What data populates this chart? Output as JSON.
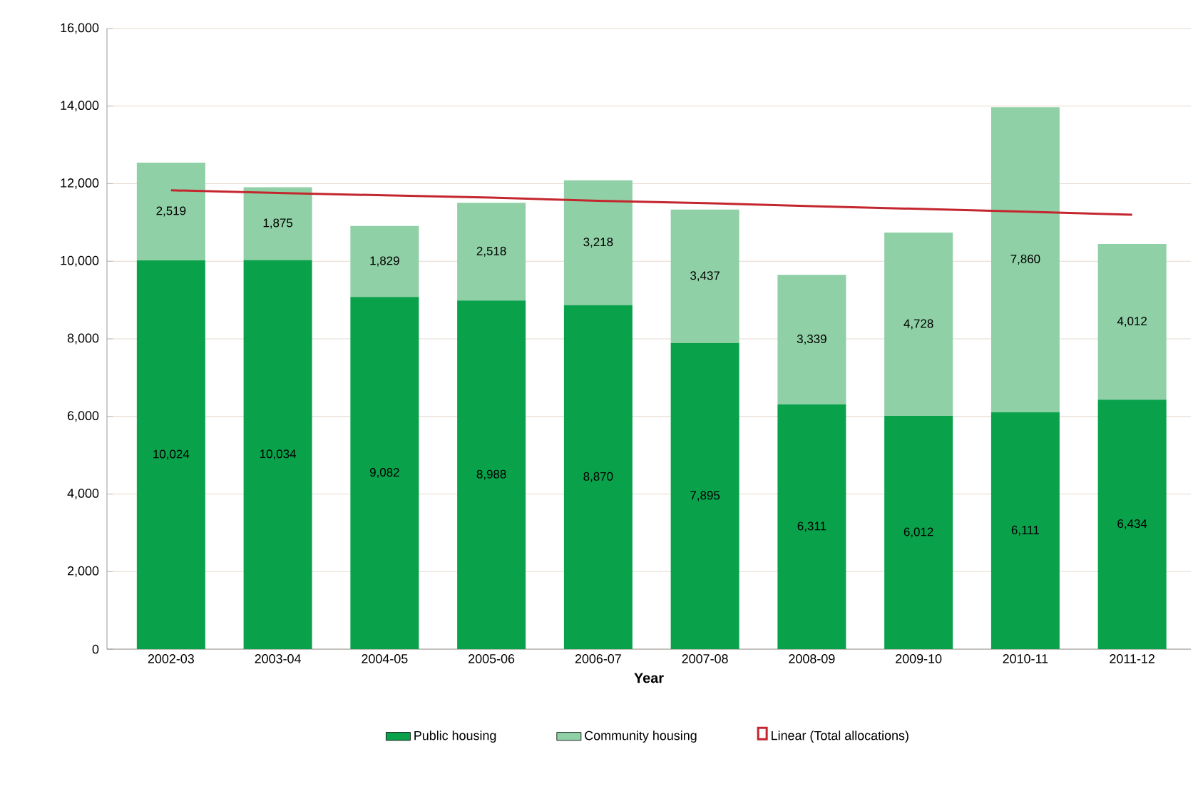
{
  "chart_data": {
    "type": "bar",
    "stacked": true,
    "xlabel": "Year",
    "categories": [
      "2002-03",
      "2003-04",
      "2004-05",
      "2005-06",
      "2006-07",
      "2007-08",
      "2008-09",
      "2009-10",
      "2010-11",
      "2011-12"
    ],
    "series": [
      {
        "name": "Public housing",
        "color": "#0aa14b",
        "values": [
          10024,
          10034,
          9082,
          8988,
          8870,
          7895,
          6311,
          6012,
          6111,
          6434
        ],
        "value_labels": [
          "10,024",
          "10,034",
          "9,082",
          "8,988",
          "8,870",
          "7,895",
          "6,311",
          "6,012",
          "6,111",
          "6,434"
        ]
      },
      {
        "name": "Community housing",
        "color": "#8fd0a6",
        "values": [
          2519,
          1875,
          1829,
          2518,
          3218,
          3437,
          3339,
          4728,
          7860,
          4012
        ],
        "value_labels": [
          "2,519",
          "1,875",
          "1,829",
          "2,518",
          "3,218",
          "3,437",
          "3,339",
          "4,728",
          "7,860",
          "4,012"
        ]
      },
      {
        "name": "Linear (Total allocations)",
        "type": "line",
        "color": "#c4262e",
        "values": [
          11830,
          11760,
          11700,
          11640,
          11560,
          11500,
          11420,
          11350,
          11280,
          11200
        ]
      }
    ],
    "ylim": [
      0,
      16000
    ],
    "yticks": [
      {
        "value": 0,
        "label": "0"
      },
      {
        "value": 2000,
        "label": "2,000"
      },
      {
        "value": 4000,
        "label": "4,000"
      },
      {
        "value": 6000,
        "label": "6,000"
      },
      {
        "value": 8000,
        "label": "8,000"
      },
      {
        "value": 10000,
        "label": "10,000"
      },
      {
        "value": 12000,
        "label": "12,000"
      },
      {
        "value": 14000,
        "label": "14,000"
      },
      {
        "value": 16000,
        "label": "16,000"
      }
    ],
    "grid": "y",
    "legend": "bottom"
  }
}
